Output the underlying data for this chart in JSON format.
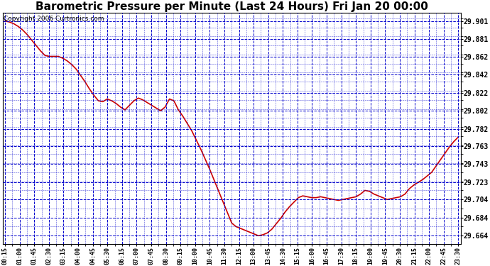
{
  "title": "Barometric Pressure per Minute (Last 24 Hours) Fri Jan 20 00:00",
  "copyright": "Copyright 2006 Curtronics.com",
  "background_color": "#ffffff",
  "plot_bg_color": "#ffffff",
  "grid_color": "#0000cc",
  "line_color": "#cc0000",
  "title_fontsize": 11,
  "yticks": [
    29.664,
    29.684,
    29.704,
    29.723,
    29.743,
    29.763,
    29.782,
    29.802,
    29.822,
    29.842,
    29.862,
    29.881,
    29.901
  ],
  "ylim": [
    29.655,
    29.91
  ],
  "xtick_labels": [
    "00:15",
    "01:00",
    "01:45",
    "02:30",
    "03:15",
    "04:00",
    "04:45",
    "05:30",
    "06:15",
    "07:00",
    "07:45",
    "08:30",
    "09:15",
    "10:00",
    "10:45",
    "11:30",
    "12:15",
    "13:00",
    "13:45",
    "14:30",
    "15:15",
    "16:00",
    "16:45",
    "17:30",
    "18:15",
    "19:00",
    "19:45",
    "20:30",
    "21:15",
    "22:00",
    "22:45",
    "23:30"
  ],
  "pressure_data": [
    29.901,
    29.9,
    29.898,
    29.895,
    29.891,
    29.886,
    29.88,
    29.874,
    29.868,
    29.863,
    29.862,
    29.862,
    29.862,
    29.86,
    29.857,
    29.853,
    29.848,
    29.841,
    29.834,
    29.826,
    29.819,
    29.813,
    29.812,
    29.815,
    29.813,
    29.81,
    29.806,
    29.803,
    29.808,
    29.813,
    29.816,
    29.814,
    29.811,
    29.808,
    29.805,
    29.802,
    29.806,
    29.815,
    29.813,
    29.803,
    29.796,
    29.788,
    29.78,
    29.77,
    29.76,
    29.749,
    29.738,
    29.726,
    29.714,
    29.702,
    29.69,
    29.678,
    29.674,
    29.672,
    29.67,
    29.668,
    29.666,
    29.664,
    29.665,
    29.667,
    29.671,
    29.677,
    29.683,
    29.69,
    29.696,
    29.701,
    29.706,
    29.708,
    29.707,
    29.706,
    29.706,
    29.707,
    29.706,
    29.705,
    29.704,
    29.703,
    29.704,
    29.705,
    29.706,
    29.707,
    29.71,
    29.714,
    29.713,
    29.71,
    29.708,
    29.706,
    29.704,
    29.705,
    29.706,
    29.707,
    29.71,
    29.716,
    29.72,
    29.723,
    29.726,
    29.73,
    29.734,
    29.741,
    29.748,
    29.755,
    29.762,
    29.768,
    29.773
  ]
}
